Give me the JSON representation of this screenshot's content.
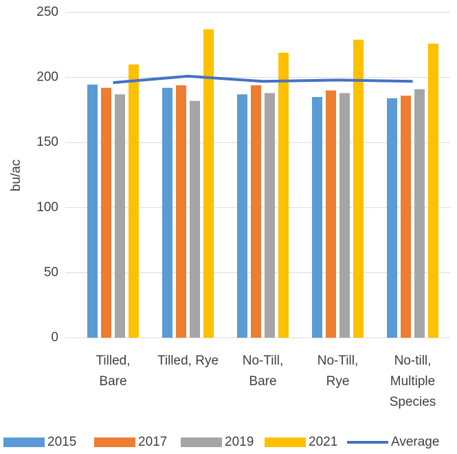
{
  "chart_data": {
    "type": "bar",
    "y_label": "bu/ac",
    "categories": [
      [
        "Tilled,",
        "Bare"
      ],
      [
        "Tilled, Rye"
      ],
      [
        "No-Till,",
        "Bare"
      ],
      [
        "No-Till,",
        "Rye"
      ],
      [
        "No-till,",
        "Multiple",
        "Species"
      ]
    ],
    "series": [
      {
        "name": "2015",
        "color": "#5b9bd5",
        "values": [
          194.5,
          192,
          187,
          185,
          184
        ]
      },
      {
        "name": "2017",
        "color": "#ed7d31",
        "values": [
          192,
          194,
          194,
          190,
          186
        ]
      },
      {
        "name": "2019",
        "color": "#a5a5a5",
        "values": [
          187,
          182,
          188,
          188,
          191
        ]
      },
      {
        "name": "2021",
        "color": "#ffc000",
        "values": [
          210,
          237,
          219,
          229,
          226
        ]
      },
      {
        "name": "Average",
        "color": "#4472c4",
        "type": "line",
        "values": [
          196,
          201,
          197,
          198,
          197
        ]
      }
    ],
    "ylim": [
      0,
      250
    ],
    "yticks": [
      0,
      50,
      100,
      150,
      200,
      250
    ],
    "grid": true,
    "legend": "bottom"
  }
}
